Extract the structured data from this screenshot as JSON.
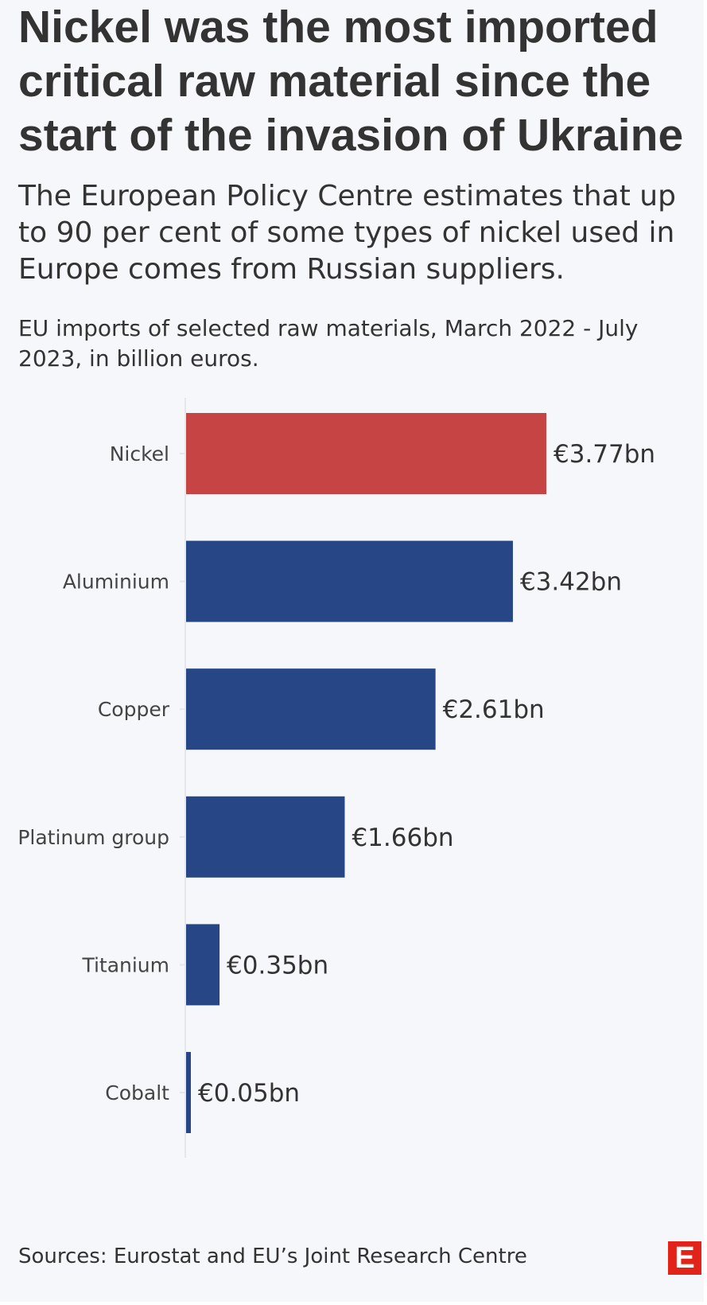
{
  "header": {
    "title": "Nickel was the most imported critical raw material since the start of the invasion of Ukraine",
    "subtitle": "The European Policy Centre estimates that up to 90 per cent of some types of nickel used in Europe comes from Russian suppliers.",
    "unit_note": "EU imports of selected raw materials, March 2022 - July 2023, in billion euros."
  },
  "footer": {
    "source": "Sources: Eurostat and EU’s Joint Research Centre",
    "logo_letter": "E"
  },
  "chart_data": {
    "type": "bar",
    "orientation": "horizontal",
    "title": "EU imports of selected raw materials, March 2022 - July 2023, in billion euros.",
    "xlabel": "",
    "ylabel": "",
    "categories": [
      "Nickel",
      "Aluminium",
      "Copper",
      "Platinum group",
      "Titanium",
      "Cobalt"
    ],
    "values": [
      3.77,
      3.42,
      2.61,
      1.66,
      0.35,
      0.05
    ],
    "labels": [
      "€3.77bn",
      "€3.42bn",
      "€2.61bn",
      "€1.66bn",
      "€0.35bn",
      "€0.05bn"
    ],
    "highlight": "Nickel",
    "xlim": [
      0,
      3.77
    ],
    "grid": false,
    "colors": {
      "highlight": "#c64444",
      "default": "#264685",
      "axis": "#e4e7ec",
      "text": "#333333",
      "category_text": "#444444"
    }
  }
}
